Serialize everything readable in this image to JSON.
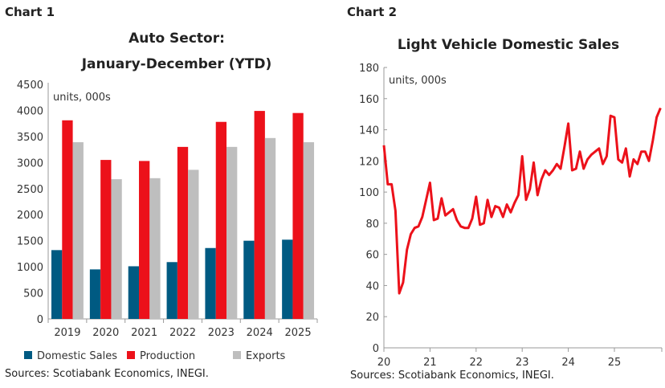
{
  "chart_data": [
    {
      "type": "bar",
      "label": "Chart 1",
      "title": [
        "Auto Sector:",
        "January-December (YTD)"
      ],
      "unit_note": "units, 000s",
      "categories": [
        "2019",
        "2020",
        "2021",
        "2022",
        "2023",
        "2024",
        "2025"
      ],
      "ylim": [
        0,
        4500
      ],
      "yticks": [
        0,
        500,
        1000,
        1500,
        2000,
        2500,
        3000,
        3500,
        4000,
        4500
      ],
      "grid": false,
      "legend": "bottom",
      "series": [
        {
          "name": "Domestic Sales",
          "color": "#005a82",
          "values": [
            1320,
            950,
            1010,
            1090,
            1360,
            1500,
            1520
          ]
        },
        {
          "name": "Production",
          "color": "#ec111a",
          "values": [
            3810,
            3050,
            3030,
            3300,
            3780,
            3990,
            3950
          ]
        },
        {
          "name": "Exports",
          "color": "#bebebe",
          "values": [
            3390,
            2680,
            2700,
            2860,
            3300,
            3470,
            3390
          ]
        }
      ],
      "source": "Sources: Scotiabank Economics, INEGI."
    },
    {
      "type": "line",
      "label": "Chart 2",
      "title": "Light Vehicle Domestic Sales",
      "unit_note": "units, 000s",
      "x_start": "2020-01",
      "frequency": "monthly",
      "xticks": [
        "20",
        "21",
        "22",
        "23",
        "24",
        "25"
      ],
      "ylim": [
        0,
        180
      ],
      "yticks": [
        0,
        20,
        40,
        60,
        80,
        100,
        120,
        140,
        160,
        180
      ],
      "grid": false,
      "series": [
        {
          "color": "#ec111a",
          "values": [
            130,
            105,
            105,
            88,
            35,
            42,
            63,
            73,
            77,
            78,
            84,
            95,
            106,
            82,
            83,
            96,
            85,
            87,
            89,
            82,
            78,
            77,
            77,
            83,
            97,
            79,
            80,
            95,
            84,
            91,
            90,
            84,
            92,
            87,
            93,
            98,
            123,
            95,
            102,
            119,
            98,
            108,
            114,
            111,
            114,
            118,
            115,
            129,
            144,
            114,
            115,
            126,
            115,
            121,
            124,
            126,
            128,
            118,
            123,
            149,
            148,
            121,
            119,
            128,
            110,
            121,
            118,
            126,
            126,
            120,
            133,
            148,
            154
          ]
        }
      ],
      "source": "Sources: Scotiabank Economics, INEGI."
    }
  ]
}
